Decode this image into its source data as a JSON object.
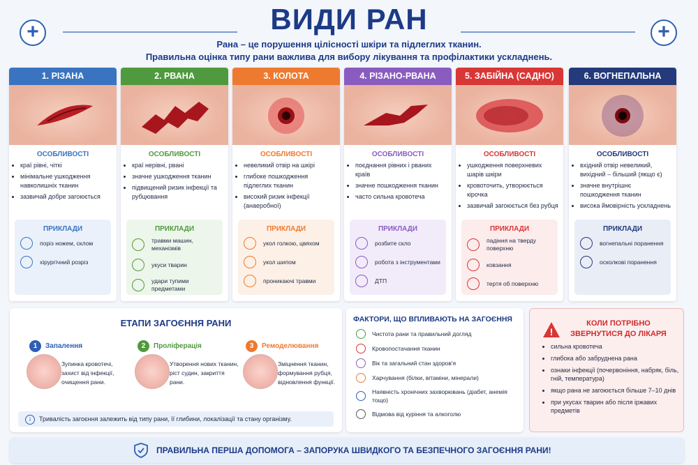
{
  "header": {
    "title": "ВИДИ РАН",
    "subtitle": [
      "Рана – це порушення цілісності шкіри та підлеглих тканин.",
      "Правильна оцінка типу рани важлива для вибору лікування та профілактики ускладнень."
    ]
  },
  "types": [
    {
      "title": "1. РІЗАНА",
      "features_heading": "ОСОБЛИВОСТІ",
      "features": [
        "краї рівні, чіткі",
        "мінімальне ушкодження навколишніх тканин",
        "зазвичай добре загоюється"
      ],
      "examples_heading": "ПРИКЛАДИ",
      "examples": [
        "поріз ножем, склом",
        "хірургічний розріз"
      ]
    },
    {
      "title": "2. РВАНА",
      "features_heading": "ОСОБЛИВОСТІ",
      "features": [
        "краї нерівні, рвані",
        "значне ушкодження тканин",
        "підвищений ризик інфекції та рубцювання"
      ],
      "examples_heading": "ПРИКЛАДИ",
      "examples": [
        "травми машин, механізмів",
        "укуси тварин",
        "удари тупими предметами"
      ]
    },
    {
      "title": "3. КОЛОТА",
      "features_heading": "ОСОБЛИВОСТІ",
      "features": [
        "невеликий отвір на шкірі",
        "глибоке пошкодження підлеглих тканин",
        "високий ризик інфекції (анаеробної)"
      ],
      "examples_heading": "ПРИКЛАДИ",
      "examples": [
        "укол голкою, цвяхом",
        "укол шипом",
        "проникаючі травми"
      ]
    },
    {
      "title": "4. РІЗАНО-РВАНА",
      "features_heading": "ОСОБЛИВОСТІ",
      "features": [
        "поєднання рівних і рваних країв",
        "значне пошкодження тканин",
        "часто сильна кровотеча"
      ],
      "examples_heading": "ПРИКЛАДИ",
      "examples": [
        "розбите скло",
        "робота з інструментами",
        "ДТП"
      ]
    },
    {
      "title": "5. ЗАБІЙНА (САДНО)",
      "features_heading": "ОСОБЛИВОСТІ",
      "features": [
        "ушкодження поверхневих шарів шкіри",
        "кровоточить, утворюється кірочка",
        "зазвичай загоюється без рубця"
      ],
      "examples_heading": "ПРИКЛАДИ",
      "examples": [
        "падіння на тверду поверхню",
        "ковзання",
        "тертя об поверхню"
      ]
    },
    {
      "title": "6. ВОГНЕПАЛЬНА",
      "features_heading": "ОСОБЛИВОСТІ",
      "features": [
        "вхідний отвір невеликий, вихідний – більший (якщо є)",
        "значне внутрішнє пошкодження тканин",
        "висока ймовірність ускладнень"
      ],
      "examples_heading": "ПРИКЛАДИ",
      "examples": [
        "вогнепальні поранення",
        "осколкові поранення"
      ]
    }
  ],
  "stages": {
    "title": "ЕТАПИ ЗАГОЄННЯ РАНИ",
    "items": [
      {
        "number": "1",
        "name": "Запалення",
        "text": "Зупинка кровотечі, захист від інфекції, очищення рани."
      },
      {
        "number": "2",
        "name": "Проліферація",
        "text": "Утворення нових тканин, ріст судин, закриття рани."
      },
      {
        "number": "3",
        "name": "Ремоделювання",
        "text": "Зміцнення тканин, формування рубця, відновлення функції."
      }
    ],
    "note": "Тривалість загоєння залежить від типу рани, її глибини, локалізації та стану організму."
  },
  "factors": {
    "title": "ФАКТОРИ, ЩО ВПЛИВАЮТЬ НА ЗАГОЄННЯ",
    "items": [
      "Чистота рани та правильний догляд",
      "Кровопостачання тканин",
      "Вік та загальний стан здоров'я",
      "Харчування (білки, вітаміни, мінерали)",
      "Наявність хронічних захворювань (діабет, анемія тощо)",
      "Відмова від куріння та алкоголю"
    ]
  },
  "doctor": {
    "title": "КОЛИ ПОТРІБНО ЗВЕРНУТИСЯ ДО ЛІКАРЯ",
    "items": [
      "сильна кровотеча",
      "глибока або забруднена рана",
      "ознаки інфекції (почервоніння, набряк, біль, гній, температура)",
      "якщо рана не загоюється більше 7–10 днів",
      "при укусах тварин або після іржавих предметів"
    ]
  },
  "footer": "ПРАВИЛЬНА ПЕРША ДОПОМОГА – ЗАПОРУКА ШВИДКОГО ТА БЕЗПЕЧНОГО ЗАГОЄННЯ РАНИ!"
}
